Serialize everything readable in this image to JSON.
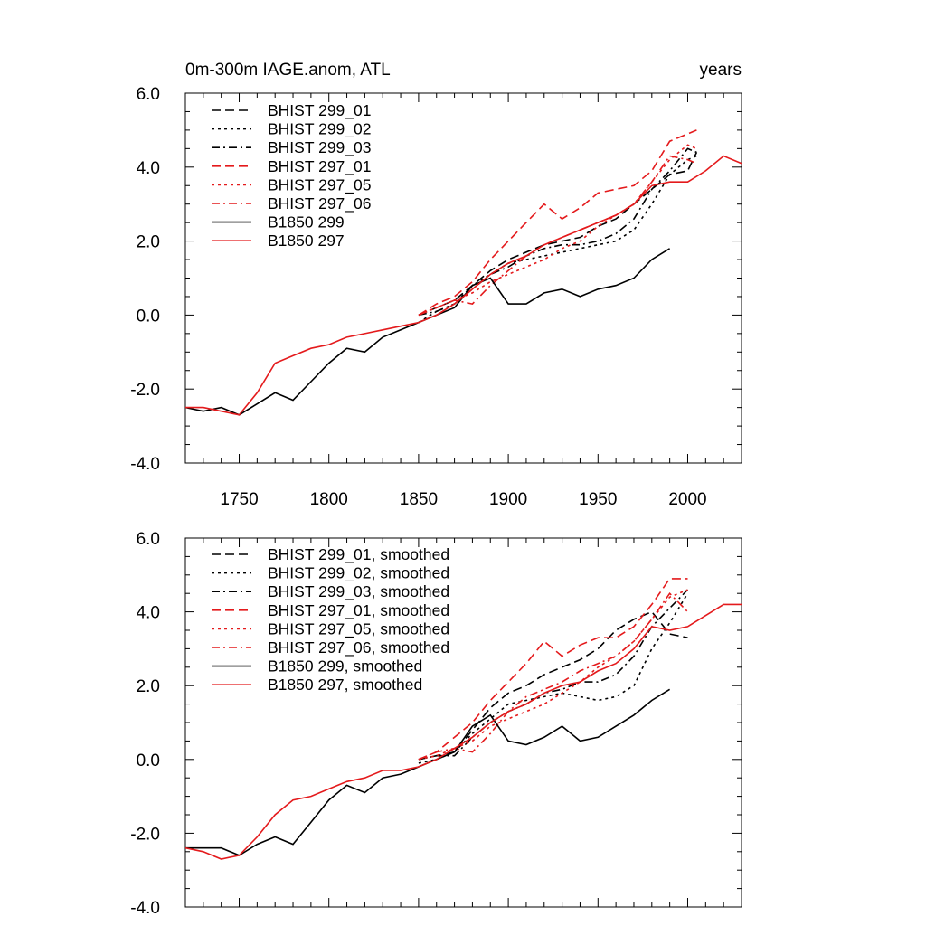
{
  "figure": {
    "title_left": "0m-300m IAGE.anom, ATL",
    "title_right": "years"
  },
  "colors": {
    "black": "#000000",
    "red": "#e41a1c"
  },
  "chart_data": [
    {
      "type": "line",
      "title": "0m-300m IAGE.anom, ATL",
      "units_label": "years",
      "xlabel": "",
      "ylabel": "",
      "xlim": [
        1720,
        2030
      ],
      "ylim": [
        -4.0,
        6.0
      ],
      "xticks": [
        1750,
        1800,
        1850,
        1900,
        1950,
        2000
      ],
      "xtick_labels": [
        "1750",
        "1800",
        "1850",
        "1900",
        "1950",
        "2000"
      ],
      "yticks": [
        -4,
        -2,
        0,
        2,
        4,
        6
      ],
      "ytick_labels": [
        "-4.0",
        "-2.0",
        "0.0",
        "2.0",
        "4.0",
        "6.0"
      ],
      "legend_position": "top-left",
      "series": [
        {
          "name": "BHIST 299_01",
          "color": "#000000",
          "dash": "long-dash",
          "x": [
            1850,
            1860,
            1870,
            1880,
            1890,
            1900,
            1910,
            1920,
            1930,
            1940,
            1950,
            1960,
            1970,
            1980,
            1990,
            2000,
            2005
          ],
          "y": [
            0.0,
            0.2,
            0.4,
            0.8,
            1.2,
            1.5,
            1.7,
            1.9,
            2.0,
            2.1,
            2.4,
            2.6,
            3.0,
            3.4,
            3.8,
            3.9,
            4.4
          ]
        },
        {
          "name": "BHIST 299_02",
          "color": "#000000",
          "dash": "dot",
          "x": [
            1850,
            1860,
            1870,
            1880,
            1890,
            1900,
            1910,
            1920,
            1930,
            1940,
            1950,
            1960,
            1970,
            1980,
            1990,
            2000,
            2005
          ],
          "y": [
            -0.2,
            0.1,
            0.3,
            0.8,
            1.1,
            1.4,
            1.5,
            1.6,
            1.7,
            1.8,
            1.9,
            2.0,
            2.3,
            3.0,
            3.8,
            4.2,
            4.3
          ]
        },
        {
          "name": "BHIST 299_03",
          "color": "#000000",
          "dash": "dash-dot",
          "x": [
            1850,
            1860,
            1870,
            1880,
            1890,
            1900,
            1910,
            1920,
            1930,
            1940,
            1950,
            1960,
            1970,
            1980,
            1990,
            2000,
            2005
          ],
          "y": [
            0.0,
            0.1,
            0.3,
            0.7,
            1.1,
            1.3,
            1.6,
            1.8,
            1.9,
            1.9,
            2.0,
            2.2,
            2.6,
            3.4,
            3.9,
            4.5,
            4.4
          ]
        },
        {
          "name": "BHIST 297_01",
          "color": "#e41a1c",
          "dash": "long-dash",
          "x": [
            1850,
            1860,
            1870,
            1880,
            1890,
            1900,
            1910,
            1920,
            1930,
            1940,
            1950,
            1960,
            1970,
            1980,
            1990,
            2000,
            2005
          ],
          "y": [
            0.0,
            0.3,
            0.5,
            0.9,
            1.5,
            2.0,
            2.5,
            3.0,
            2.6,
            2.9,
            3.3,
            3.4,
            3.5,
            3.9,
            4.7,
            4.9,
            5.0
          ]
        },
        {
          "name": "BHIST 297_05",
          "color": "#e41a1c",
          "dash": "dot",
          "x": [
            1850,
            1860,
            1870,
            1880,
            1890,
            1900,
            1910,
            1920,
            1930,
            1940,
            1950,
            1960,
            1970,
            1980,
            1990,
            2000,
            2005
          ],
          "y": [
            0.0,
            0.2,
            0.4,
            0.6,
            0.9,
            1.1,
            1.3,
            1.5,
            1.8,
            2.0,
            2.4,
            2.7,
            3.0,
            3.6,
            4.2,
            4.6,
            4.5
          ]
        },
        {
          "name": "BHIST 297_06",
          "color": "#e41a1c",
          "dash": "dash-dot",
          "x": [
            1850,
            1860,
            1870,
            1880,
            1890,
            1900,
            1910,
            1920,
            1930,
            1940,
            1950,
            1960,
            1970,
            1980,
            1990,
            2000,
            2005
          ],
          "y": [
            0.0,
            0.2,
            0.4,
            0.3,
            0.8,
            1.2,
            1.6,
            1.9,
            2.1,
            2.3,
            2.5,
            2.7,
            3.0,
            3.6,
            4.3,
            4.2,
            4.1
          ]
        },
        {
          "name": "B1850 299",
          "color": "#000000",
          "dash": "solid",
          "x": [
            1720,
            1730,
            1740,
            1750,
            1760,
            1770,
            1780,
            1790,
            1800,
            1810,
            1820,
            1830,
            1840,
            1850,
            1860,
            1870,
            1880,
            1890,
            1900,
            1910,
            1920,
            1930,
            1940,
            1950,
            1960,
            1970,
            1980,
            1990
          ],
          "y": [
            -2.5,
            -2.6,
            -2.5,
            -2.7,
            -2.4,
            -2.1,
            -2.3,
            -1.8,
            -1.3,
            -0.9,
            -1.0,
            -0.6,
            -0.4,
            -0.2,
            0.0,
            0.2,
            0.8,
            1.0,
            0.3,
            0.3,
            0.6,
            0.7,
            0.5,
            0.7,
            0.8,
            1.0,
            1.5,
            1.8
          ]
        },
        {
          "name": "B1850 297",
          "color": "#e41a1c",
          "dash": "solid",
          "x": [
            1720,
            1730,
            1740,
            1750,
            1760,
            1770,
            1780,
            1790,
            1800,
            1810,
            1820,
            1830,
            1840,
            1850,
            1860,
            1870,
            1880,
            1890,
            1900,
            1910,
            1920,
            1930,
            1940,
            1950,
            1960,
            1970,
            1980,
            1990,
            2000,
            2010,
            2020,
            2030
          ],
          "y": [
            -2.5,
            -2.5,
            -2.6,
            -2.7,
            -2.1,
            -1.3,
            -1.1,
            -0.9,
            -0.8,
            -0.6,
            -0.5,
            -0.4,
            -0.3,
            -0.2,
            0.0,
            0.3,
            0.7,
            1.1,
            1.4,
            1.6,
            1.9,
            2.1,
            2.3,
            2.5,
            2.7,
            3.0,
            3.5,
            3.6,
            3.6,
            3.9,
            4.3,
            4.1
          ]
        }
      ]
    },
    {
      "type": "line",
      "title": "",
      "xlim": [
        1720,
        2030
      ],
      "ylim": [
        -4.0,
        6.0
      ],
      "xticks": [
        1750,
        1800,
        1850,
        1900,
        1950,
        2000
      ],
      "yticks": [
        -4,
        -2,
        0,
        2,
        4,
        6
      ],
      "ytick_labels": [
        "-4.0",
        "-2.0",
        "0.0",
        "2.0",
        "4.0",
        "6.0"
      ],
      "legend_position": "top-left",
      "series": [
        {
          "name": "BHIST 299_01, smoothed",
          "color": "#000000",
          "dash": "long-dash",
          "x": [
            1850,
            1860,
            1870,
            1880,
            1890,
            1900,
            1910,
            1920,
            1930,
            1940,
            1950,
            1960,
            1970,
            1980,
            1990,
            2000
          ],
          "y": [
            0.0,
            0.1,
            0.2,
            0.8,
            1.4,
            1.8,
            2.0,
            2.3,
            2.5,
            2.7,
            3.0,
            3.5,
            3.8,
            4.0,
            3.4,
            3.3
          ]
        },
        {
          "name": "BHIST 299_02, smoothed",
          "color": "#000000",
          "dash": "dot",
          "x": [
            1850,
            1860,
            1870,
            1880,
            1890,
            1900,
            1910,
            1920,
            1930,
            1940,
            1950,
            1960,
            1970,
            1980,
            1990,
            2000
          ],
          "y": [
            -0.1,
            0.0,
            0.2,
            0.7,
            1.1,
            1.5,
            1.6,
            1.7,
            1.8,
            1.7,
            1.6,
            1.7,
            2.0,
            3.0,
            3.7,
            4.5
          ]
        },
        {
          "name": "BHIST 299_03, smoothed",
          "color": "#000000",
          "dash": "dash-dot",
          "x": [
            1850,
            1860,
            1870,
            1880,
            1890,
            1900,
            1910,
            1920,
            1930,
            1940,
            1950,
            1960,
            1970,
            1980,
            1990,
            2000
          ],
          "y": [
            0.0,
            0.1,
            0.1,
            0.6,
            1.0,
            1.3,
            1.5,
            1.8,
            1.9,
            2.1,
            2.1,
            2.3,
            2.8,
            3.6,
            4.1,
            4.6
          ]
        },
        {
          "name": "BHIST 297_01, smoothed",
          "color": "#e41a1c",
          "dash": "long-dash",
          "x": [
            1850,
            1860,
            1870,
            1880,
            1890,
            1900,
            1910,
            1920,
            1930,
            1940,
            1950,
            1960,
            1970,
            1980,
            1990,
            2000
          ],
          "y": [
            0.0,
            0.2,
            0.6,
            1.0,
            1.6,
            2.1,
            2.6,
            3.2,
            2.8,
            3.1,
            3.3,
            3.3,
            3.6,
            4.2,
            4.9,
            4.9
          ]
        },
        {
          "name": "BHIST 297_05, smoothed",
          "color": "#e41a1c",
          "dash": "dot",
          "x": [
            1850,
            1860,
            1870,
            1880,
            1890,
            1900,
            1910,
            1920,
            1930,
            1940,
            1950,
            1960,
            1970,
            1980,
            1990,
            2000
          ],
          "y": [
            0.0,
            0.1,
            0.3,
            0.5,
            0.9,
            1.1,
            1.3,
            1.5,
            1.8,
            2.1,
            2.5,
            2.8,
            3.2,
            3.8,
            4.4,
            4.6
          ]
        },
        {
          "name": "BHIST 297_06, smoothed",
          "color": "#e41a1c",
          "dash": "dash-dot",
          "x": [
            1850,
            1860,
            1870,
            1880,
            1890,
            1900,
            1910,
            1920,
            1930,
            1940,
            1950,
            1960,
            1970,
            1980,
            1990,
            2000
          ],
          "y": [
            0.0,
            0.2,
            0.3,
            0.2,
            0.7,
            1.3,
            1.7,
            1.9,
            2.1,
            2.4,
            2.6,
            2.8,
            3.2,
            3.8,
            4.5,
            4.0
          ]
        },
        {
          "name": "B1850 299, smoothed",
          "color": "#000000",
          "dash": "solid",
          "x": [
            1720,
            1730,
            1740,
            1750,
            1760,
            1770,
            1780,
            1790,
            1800,
            1810,
            1820,
            1830,
            1840,
            1850,
            1860,
            1870,
            1880,
            1890,
            1900,
            1910,
            1920,
            1930,
            1940,
            1950,
            1960,
            1970,
            1980,
            1990
          ],
          "y": [
            -2.4,
            -2.4,
            -2.4,
            -2.6,
            -2.3,
            -2.1,
            -2.3,
            -1.7,
            -1.1,
            -0.7,
            -0.9,
            -0.5,
            -0.4,
            -0.2,
            0.0,
            0.2,
            0.9,
            1.2,
            0.5,
            0.4,
            0.6,
            0.9,
            0.5,
            0.6,
            0.9,
            1.2,
            1.6,
            1.9
          ]
        },
        {
          "name": "B1850 297, smoothed",
          "color": "#e41a1c",
          "dash": "solid",
          "x": [
            1720,
            1730,
            1740,
            1750,
            1760,
            1770,
            1780,
            1790,
            1800,
            1810,
            1820,
            1830,
            1840,
            1850,
            1860,
            1870,
            1880,
            1890,
            1900,
            1910,
            1920,
            1930,
            1940,
            1950,
            1960,
            1970,
            1980,
            1990,
            2000,
            2010,
            2020,
            2030
          ],
          "y": [
            -2.4,
            -2.5,
            -2.7,
            -2.6,
            -2.1,
            -1.5,
            -1.1,
            -1.0,
            -0.8,
            -0.6,
            -0.5,
            -0.3,
            -0.3,
            -0.2,
            0.0,
            0.3,
            0.6,
            1.0,
            1.3,
            1.5,
            1.8,
            2.0,
            2.1,
            2.4,
            2.6,
            3.0,
            3.6,
            3.5,
            3.6,
            3.9,
            4.2,
            4.2
          ]
        }
      ]
    }
  ]
}
